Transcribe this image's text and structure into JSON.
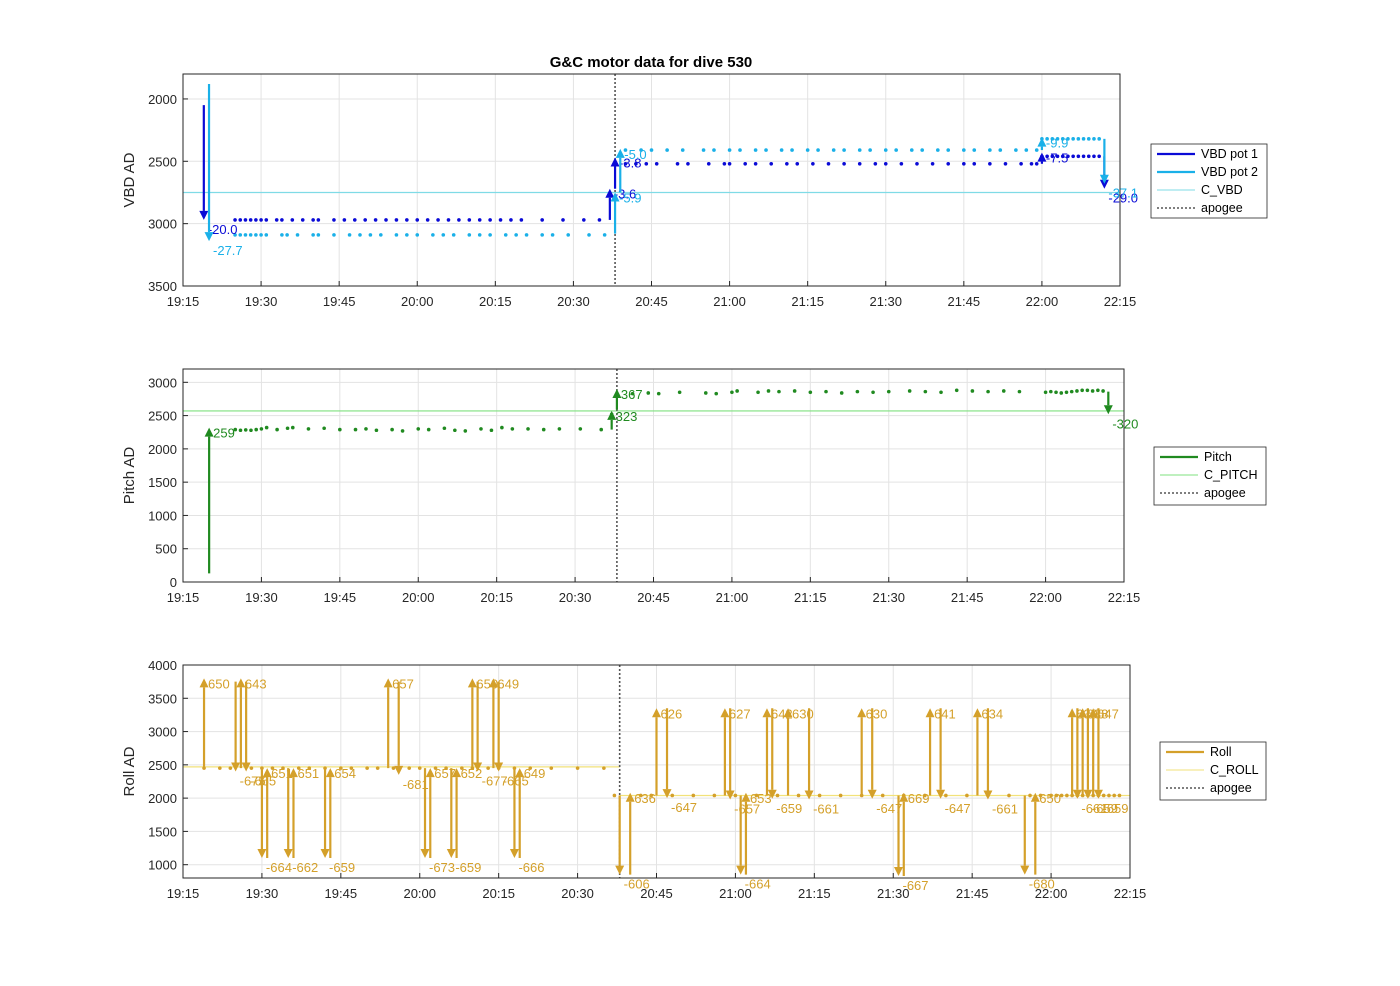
{
  "title": "G&C motor data for dive 530",
  "colors": {
    "vbd1": "#0a0ad6",
    "vbd2": "#1ab0e8",
    "c_vbd": "#7fdbe6",
    "pitch": "#208a20",
    "c_pitch": "#7fe07f",
    "roll": "#d4a02a",
    "c_roll": "#f2e27a",
    "apogee": "#555555"
  },
  "time_ticks": [
    "19:15",
    "19:30",
    "19:45",
    "20:00",
    "20:15",
    "20:30",
    "20:45",
    "21:00",
    "21:15",
    "21:30",
    "21:45",
    "22:00",
    "22:15"
  ],
  "chart_data": [
    {
      "type": "line",
      "ylabel": "VBD AD",
      "ylim": [
        3500,
        1800
      ],
      "y_reversed": true,
      "yticks": [
        "2000",
        "2500",
        "3000",
        "3500"
      ],
      "xlim": [
        "19:15",
        "22:15"
      ],
      "grid": true,
      "legend_position": "right",
      "legend": [
        "VBD pot 1",
        "VBD pot 2",
        "C_VBD",
        "apogee"
      ],
      "apogee_time": "20:38",
      "reference_lines": [
        {
          "name": "C_VBD",
          "y": 2750
        }
      ],
      "series": [
        {
          "name": "VBD pot 1",
          "style": "dots",
          "y": 2970,
          "x": [
            "19:25",
            "19:26",
            "19:27",
            "19:28",
            "19:29",
            "19:30",
            "19:31",
            "19:33",
            "19:34",
            "19:36",
            "19:38",
            "19:40",
            "19:41",
            "19:44",
            "19:46",
            "19:48",
            "19:50",
            "19:52",
            "19:54",
            "19:56",
            "19:58",
            "20:00",
            "20:02",
            "20:04",
            "20:06",
            "20:08",
            "20:10",
            "20:12",
            "20:14",
            "20:16",
            "20:18",
            "20:20",
            "20:24",
            "20:28",
            "20:32",
            "20:35"
          ]
        },
        {
          "name": "VBD pot 2",
          "style": "dots",
          "y": 3090,
          "x": [
            "19:25",
            "19:26",
            "19:27",
            "19:28",
            "19:29",
            "19:30",
            "19:31",
            "19:34",
            "19:35",
            "19:37",
            "19:40",
            "19:41",
            "19:44",
            "19:47",
            "19:49",
            "19:51",
            "19:53",
            "19:56",
            "19:58",
            "20:00",
            "20:03",
            "20:05",
            "20:07",
            "20:10",
            "20:12",
            "20:14",
            "20:17",
            "20:19",
            "20:21",
            "20:24",
            "20:26",
            "20:29",
            "20:33",
            "20:36"
          ]
        },
        {
          "name": "VBD pot 1",
          "style": "dots",
          "y": 2520,
          "x": [
            "20:40",
            "20:42",
            "20:44",
            "20:46",
            "20:50",
            "20:52",
            "20:56",
            "20:59",
            "21:00",
            "21:03",
            "21:05",
            "21:08",
            "21:11",
            "21:13",
            "21:16",
            "21:19",
            "21:22",
            "21:25",
            "21:28",
            "21:30",
            "21:33",
            "21:36",
            "21:39",
            "21:42",
            "21:45",
            "21:47",
            "21:50",
            "21:53",
            "21:56",
            "21:58",
            "21:59"
          ]
        },
        {
          "name": "VBD pot 2",
          "style": "dots",
          "y": 2410,
          "x": [
            "20:40",
            "20:43",
            "20:45",
            "20:48",
            "20:51",
            "20:55",
            "20:57",
            "21:00",
            "21:02",
            "21:05",
            "21:07",
            "21:10",
            "21:12",
            "21:15",
            "21:17",
            "21:20",
            "21:22",
            "21:25",
            "21:27",
            "21:30",
            "21:32",
            "21:35",
            "21:37",
            "21:40",
            "21:42",
            "21:45",
            "21:47",
            "21:50",
            "21:52",
            "21:55",
            "21:57",
            "21:59"
          ]
        },
        {
          "name": "VBD pot 1",
          "style": "dots",
          "y": 2460,
          "x": [
            "22:00",
            "22:01",
            "22:02",
            "22:03",
            "22:04",
            "22:05",
            "22:06",
            "22:07",
            "22:08",
            "22:09",
            "22:10",
            "22:11"
          ]
        },
        {
          "name": "VBD pot 2",
          "style": "dots",
          "y": 2320,
          "x": [
            "22:00",
            "22:01",
            "22:02",
            "22:03",
            "22:04",
            "22:05",
            "22:06",
            "22:07",
            "22:08",
            "22:09",
            "22:10",
            "22:11"
          ]
        }
      ],
      "moves": [
        {
          "series": "VBD pot 1",
          "t": "19:19",
          "from": 2050,
          "to": 2970,
          "label": "-20.0"
        },
        {
          "series": "VBD pot 2",
          "t": "19:20",
          "from": 1880,
          "to": 3140,
          "label": "-27.7"
        },
        {
          "series": "VBD pot 1",
          "t": "20:37",
          "from": 2970,
          "to": 2720,
          "label": "-3.6"
        },
        {
          "series": "VBD pot 1",
          "t": "20:38",
          "from": 2720,
          "to": 2470,
          "label": "-3.8"
        },
        {
          "series": "VBD pot 2",
          "t": "20:38",
          "from": 3080,
          "to": 2750,
          "label": "-5.9"
        },
        {
          "series": "VBD pot 2",
          "t": "20:39",
          "from": 2750,
          "to": 2400,
          "label": "-5.0"
        },
        {
          "series": "VBD pot 1",
          "t": "22:00",
          "from": 2520,
          "to": 2430,
          "label": "-7.5"
        },
        {
          "series": "VBD pot 2",
          "t": "22:00",
          "from": 2410,
          "to": 2310,
          "label": "-9.9"
        },
        {
          "series": "VBD pot 1",
          "t": "22:12",
          "from": 2460,
          "to": 2720,
          "label": "-29.0"
        },
        {
          "series": "VBD pot 2",
          "t": "22:12",
          "from": 2320,
          "to": 2680,
          "label": "-37.1"
        }
      ]
    },
    {
      "type": "line",
      "ylabel": "Pitch AD",
      "ylim": [
        0,
        3200
      ],
      "yticks": [
        "0",
        "500",
        "1000",
        "1500",
        "2000",
        "2500",
        "3000"
      ],
      "xlim": [
        "19:15",
        "22:15"
      ],
      "grid": true,
      "legend_position": "right",
      "legend": [
        "Pitch",
        "C_PITCH",
        "apogee"
      ],
      "apogee_time": "20:38",
      "reference_lines": [
        {
          "name": "C_PITCH",
          "y": 2570
        }
      ],
      "series": [
        {
          "name": "Pitch",
          "style": "dots",
          "x": [
            "19:25",
            "19:26",
            "19:27",
            "19:28",
            "19:29",
            "19:30",
            "19:31",
            "19:33",
            "19:35",
            "19:36",
            "19:39",
            "19:42",
            "19:45",
            "19:48",
            "19:50",
            "19:52",
            "19:55",
            "19:57",
            "20:00",
            "20:02",
            "20:05",
            "20:07",
            "20:09",
            "20:12",
            "20:14",
            "20:16",
            "20:18",
            "20:21",
            "20:24",
            "20:27",
            "20:31",
            "20:35",
            "20:37"
          ],
          "y": [
            2290,
            2280,
            2285,
            2280,
            2290,
            2300,
            2320,
            2290,
            2310,
            2320,
            2300,
            2310,
            2290,
            2290,
            2300,
            2280,
            2290,
            2270,
            2300,
            2290,
            2310,
            2280,
            2270,
            2300,
            2280,
            2320,
            2300,
            2300,
            2290,
            2300,
            2300,
            2290,
            2520
          ]
        },
        {
          "name": "Pitch",
          "style": "dots",
          "x": [
            "20:41",
            "20:44",
            "20:46",
            "20:50",
            "20:55",
            "20:57",
            "21:00",
            "21:01",
            "21:05",
            "21:07",
            "21:09",
            "21:12",
            "21:15",
            "21:18",
            "21:21",
            "21:24",
            "21:27",
            "21:30",
            "21:34",
            "21:37",
            "21:40",
            "21:43",
            "21:46",
            "21:49",
            "21:52",
            "21:55",
            "22:00",
            "22:01",
            "22:02",
            "22:03",
            "22:04",
            "22:05",
            "22:06",
            "22:07",
            "22:08",
            "22:09",
            "22:10",
            "22:11"
          ],
          "y": [
            2830,
            2840,
            2830,
            2850,
            2840,
            2830,
            2850,
            2870,
            2850,
            2870,
            2860,
            2870,
            2850,
            2860,
            2840,
            2860,
            2850,
            2860,
            2870,
            2860,
            2850,
            2880,
            2870,
            2860,
            2870,
            2860,
            2850,
            2860,
            2850,
            2840,
            2850,
            2860,
            2870,
            2880,
            2880,
            2870,
            2880,
            2870
          ]
        }
      ],
      "moves": [
        {
          "series": "Pitch",
          "t": "19:20",
          "from": 130,
          "to": 2320,
          "label": "259"
        },
        {
          "series": "Pitch",
          "t": "20:37",
          "from": 2290,
          "to": 2570,
          "label": "323"
        },
        {
          "series": "Pitch",
          "t": "20:38",
          "from": 2590,
          "to": 2900,
          "label": "367"
        },
        {
          "series": "Pitch",
          "t": "22:12",
          "from": 2860,
          "to": 2520,
          "label": "-320"
        }
      ]
    },
    {
      "type": "line",
      "ylabel": "Roll AD",
      "ylim": [
        800,
        4000
      ],
      "yticks": [
        "1000",
        "1500",
        "2000",
        "2500",
        "3000",
        "3500",
        "4000"
      ],
      "xlim": [
        "19:15",
        "22:15"
      ],
      "grid": true,
      "legend_position": "right",
      "legend": [
        "Roll",
        "C_ROLL",
        "apogee"
      ],
      "apogee_time": "20:38",
      "reference_lines": [
        {
          "name": "C_ROLL",
          "y": 2470,
          "x_range": [
            "19:15",
            "20:38"
          ]
        },
        {
          "name": "C_ROLL",
          "y": 2040,
          "x_range": [
            "20:38",
            "22:15"
          ]
        }
      ],
      "series": [
        {
          "name": "Roll",
          "style": "dots",
          "y": 2450,
          "x": [
            "19:19",
            "19:22",
            "19:24",
            "19:28",
            "19:30",
            "19:32",
            "19:34",
            "19:37",
            "19:39",
            "19:42",
            "19:45",
            "19:47",
            "19:50",
            "19:52",
            "19:55",
            "19:58",
            "20:00",
            "20:03",
            "20:05",
            "20:08",
            "20:10",
            "20:13",
            "20:15",
            "20:18",
            "20:21",
            "20:25",
            "20:30",
            "20:35"
          ]
        },
        {
          "name": "Roll",
          "style": "dots",
          "y": 2040,
          "x": [
            "20:37",
            "20:42",
            "20:44",
            "20:48",
            "20:52",
            "20:56",
            "21:00",
            "21:04",
            "21:08",
            "21:12",
            "21:16",
            "21:20",
            "21:24",
            "21:28",
            "21:32",
            "21:36",
            "21:40",
            "21:44",
            "21:48",
            "21:52",
            "21:56",
            "21:58",
            "22:00",
            "22:01",
            "22:02",
            "22:03",
            "22:04",
            "22:05",
            "22:06",
            "22:07",
            "22:08",
            "22:09",
            "22:10",
            "22:11",
            "22:12",
            "22:13"
          ]
        }
      ],
      "moves": [
        {
          "t": "19:19",
          "from": 2450,
          "to": 3800,
          "label": "650"
        },
        {
          "t": "19:25",
          "from": 3750,
          "to": 2400,
          "label": "-675"
        },
        {
          "t": "19:26",
          "from": 2450,
          "to": 3800,
          "label": "643"
        },
        {
          "t": "19:27",
          "from": 3750,
          "to": 2400,
          "label": "-665"
        },
        {
          "t": "19:30",
          "from": 2450,
          "to": 1100,
          "label": "-664"
        },
        {
          "t": "19:31",
          "from": 1100,
          "to": 2450,
          "label": "651"
        },
        {
          "t": "19:35",
          "from": 2450,
          "to": 1100,
          "label": "-662"
        },
        {
          "t": "19:36",
          "from": 1100,
          "to": 2450,
          "label": "651"
        },
        {
          "t": "19:42",
          "from": 2450,
          "to": 1100,
          "label": "-659"
        },
        {
          "t": "19:43",
          "from": 1100,
          "to": 2450,
          "label": "654"
        },
        {
          "t": "19:54",
          "from": 2450,
          "to": 3800,
          "label": "657"
        },
        {
          "t": "19:56",
          "from": 3750,
          "to": 2350,
          "label": "-681"
        },
        {
          "t": "20:01",
          "from": 2450,
          "to": 1100,
          "label": "-673"
        },
        {
          "t": "20:02",
          "from": 1100,
          "to": 2450,
          "label": "657"
        },
        {
          "t": "20:06",
          "from": 2450,
          "to": 1100,
          "label": "-659"
        },
        {
          "t": "20:07",
          "from": 1100,
          "to": 2450,
          "label": "652"
        },
        {
          "t": "20:10",
          "from": 2450,
          "to": 3800,
          "label": "650"
        },
        {
          "t": "20:11",
          "from": 3750,
          "to": 2400,
          "label": "-677"
        },
        {
          "t": "20:14",
          "from": 2450,
          "to": 3800,
          "label": "649"
        },
        {
          "t": "20:15",
          "from": 3750,
          "to": 2400,
          "label": "-665"
        },
        {
          "t": "20:18",
          "from": 2450,
          "to": 1100,
          "label": "-666"
        },
        {
          "t": "20:19",
          "from": 1100,
          "to": 2450,
          "label": "649"
        },
        {
          "t": "20:38",
          "from": 2040,
          "to": 850,
          "label": "-606"
        },
        {
          "t": "20:40",
          "from": 850,
          "to": 2080,
          "label": "636"
        },
        {
          "t": "20:45",
          "from": 2040,
          "to": 3350,
          "label": "626"
        },
        {
          "t": "20:47",
          "from": 3350,
          "to": 2000,
          "label": "-647"
        },
        {
          "t": "20:58",
          "from": 2040,
          "to": 3350,
          "label": "627"
        },
        {
          "t": "20:59",
          "from": 3350,
          "to": 1980,
          "label": "-657"
        },
        {
          "t": "21:01",
          "from": 2040,
          "to": 850,
          "label": "-664"
        },
        {
          "t": "21:02",
          "from": 850,
          "to": 2080,
          "label": "653"
        },
        {
          "t": "21:06",
          "from": 2040,
          "to": 3350,
          "label": "642"
        },
        {
          "t": "21:07",
          "from": 3350,
          "to": 1990,
          "label": "-659"
        },
        {
          "t": "21:10",
          "from": 2040,
          "to": 3350,
          "label": "630"
        },
        {
          "t": "21:14",
          "from": 3350,
          "to": 1980,
          "label": "-661"
        },
        {
          "t": "21:24",
          "from": 2040,
          "to": 3350,
          "label": "630"
        },
        {
          "t": "21:26",
          "from": 3350,
          "to": 1990,
          "label": "-647"
        },
        {
          "t": "21:31",
          "from": 2040,
          "to": 830,
          "label": "-667"
        },
        {
          "t": "21:32",
          "from": 830,
          "to": 2080,
          "label": "669"
        },
        {
          "t": "21:37",
          "from": 2040,
          "to": 3350,
          "label": "641"
        },
        {
          "t": "21:39",
          "from": 3350,
          "to": 1990,
          "label": "-647"
        },
        {
          "t": "21:46",
          "from": 2040,
          "to": 3350,
          "label": "634"
        },
        {
          "t": "21:48",
          "from": 3350,
          "to": 1980,
          "label": "-661"
        },
        {
          "t": "21:55",
          "from": 2040,
          "to": 850,
          "label": "-680"
        },
        {
          "t": "21:57",
          "from": 850,
          "to": 2080,
          "label": "650"
        },
        {
          "t": "22:04",
          "from": 2040,
          "to": 3350,
          "label": "639"
        },
        {
          "t": "22:05",
          "from": 3350,
          "to": 1990,
          "label": "-661"
        },
        {
          "t": "22:06",
          "from": 2040,
          "to": 3350,
          "label": "638"
        },
        {
          "t": "22:07",
          "from": 3350,
          "to": 1990,
          "label": "-659"
        },
        {
          "t": "22:08",
          "from": 2040,
          "to": 3350,
          "label": "647"
        },
        {
          "t": "22:09",
          "from": 3350,
          "to": 1990,
          "label": "-659"
        }
      ]
    }
  ]
}
